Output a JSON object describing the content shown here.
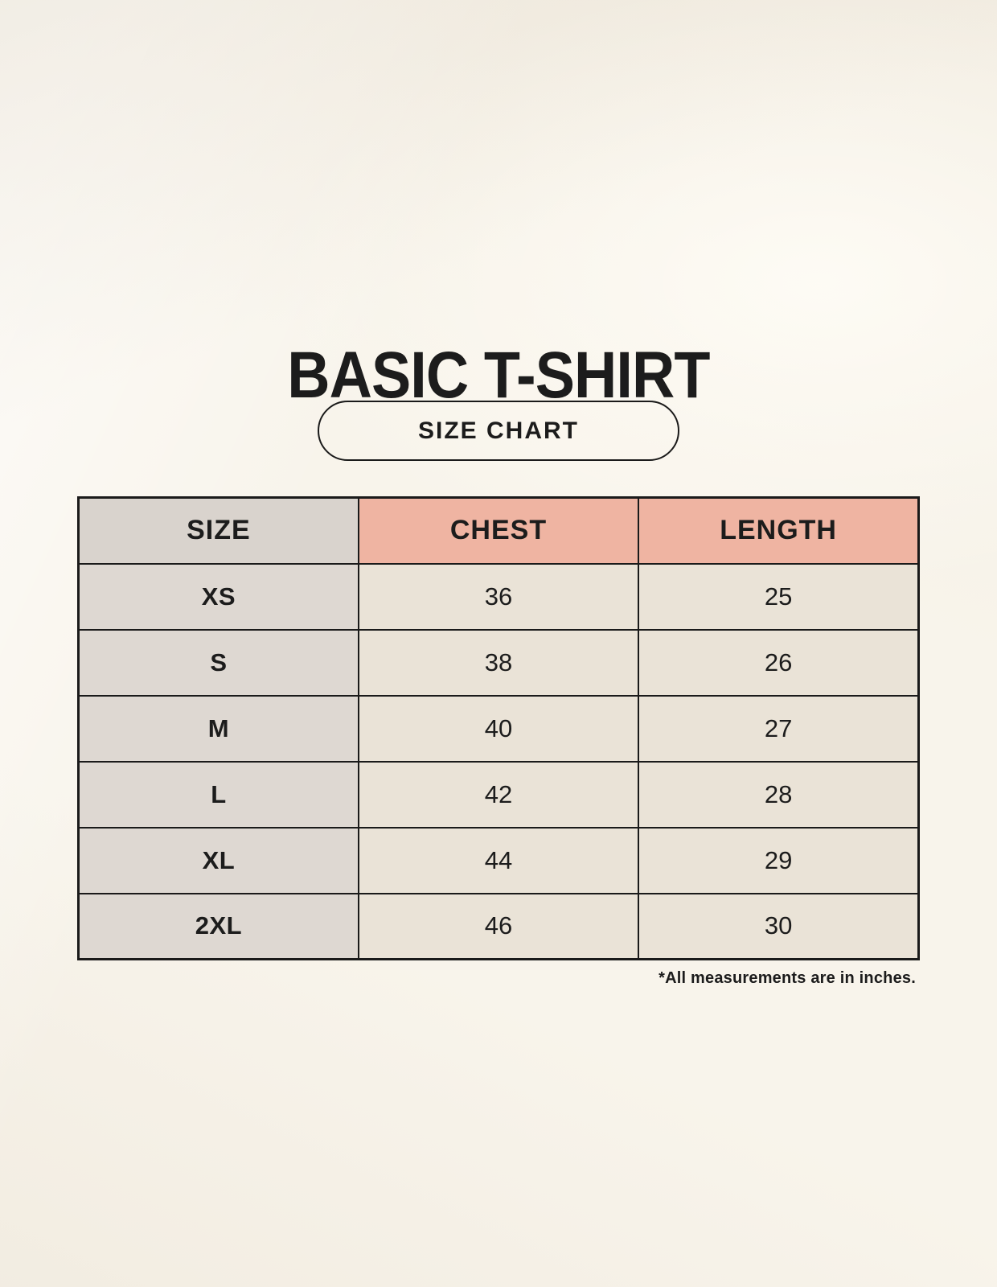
{
  "header": {
    "title": "BASIC T-SHIRT",
    "badge_label": "SIZE CHART"
  },
  "chart_data": {
    "type": "table",
    "title": "BASIC T-SHIRT",
    "columns": [
      "SIZE",
      "CHEST",
      "LENGTH"
    ],
    "rows": [
      [
        "XS",
        "36",
        "25"
      ],
      [
        "S",
        "38",
        "26"
      ],
      [
        "M",
        "40",
        "27"
      ],
      [
        "L",
        "42",
        "28"
      ],
      [
        "XL",
        "44",
        "29"
      ],
      [
        "2XL",
        "46",
        "30"
      ]
    ],
    "units_note": "*All measurements are in inches."
  },
  "colors": {
    "background": "#f8f4eb",
    "text": "#1c1c1c",
    "table_border": "#1a1a1a",
    "header_size_bg": "#d9d3cd",
    "header_accent_bg": "#efb4a2",
    "row_label_bg": "#ded8d2",
    "row_value_bg": "#eae3d7"
  }
}
